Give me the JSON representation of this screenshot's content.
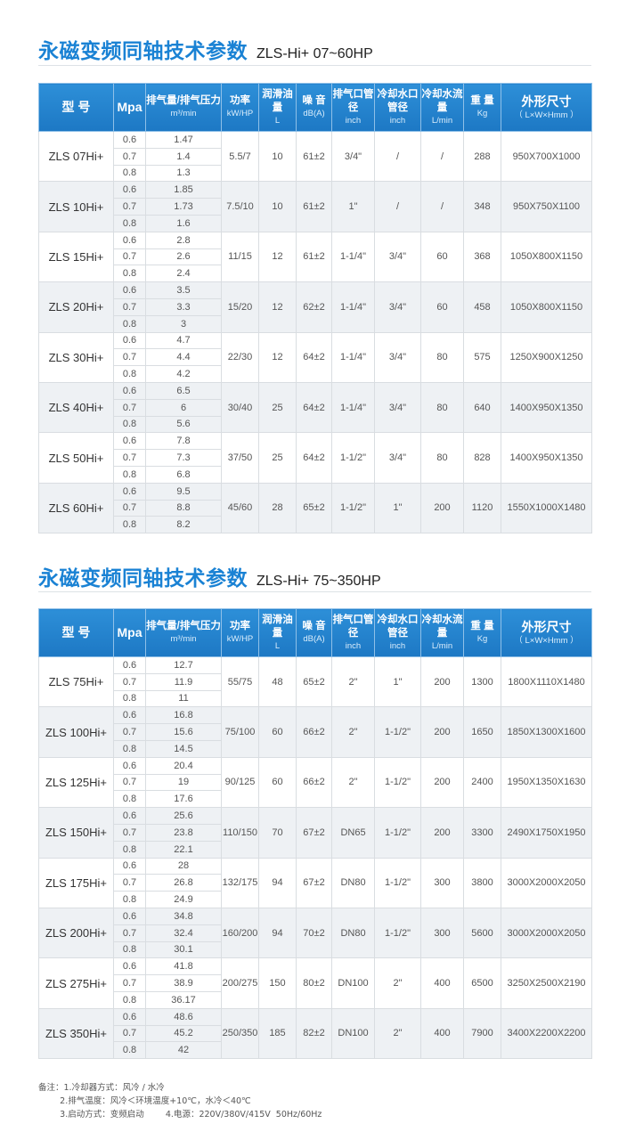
{
  "headers": [
    {
      "main": "型 号",
      "sub": ""
    },
    {
      "main": "Mpa",
      "sub": ""
    },
    {
      "main": "排气量/排气压力",
      "sub": "m³/min"
    },
    {
      "main": "功率",
      "sub": "kW/HP"
    },
    {
      "main": "润滑油量",
      "sub": "L"
    },
    {
      "main": "噪 音",
      "sub": "dB(A)"
    },
    {
      "main": "排气口管径",
      "sub": "inch"
    },
    {
      "main": "冷却水口管径",
      "sub": "inch"
    },
    {
      "main": "冷却水流量",
      "sub": "L/min"
    },
    {
      "main": "重 量",
      "sub": "Kg"
    },
    {
      "main": "外形尺寸",
      "sub": "（ L×W×Hmm ）"
    }
  ],
  "tables": [
    {
      "title_cn": "永磁变频同轴技术参数",
      "title_en": "ZLS-Hi+ 07~60HP",
      "rows": [
        {
          "model": "ZLS 07Hi+",
          "mpa": [
            "0.6",
            "0.7",
            "0.8"
          ],
          "flow": [
            "1.47",
            "1.4",
            "1.3"
          ],
          "power": "5.5/7",
          "oil": "10",
          "noise": "61±2",
          "outlet": "3/4\"",
          "water_pipe": "/",
          "water_flow": "/",
          "weight": "288",
          "dims": "950X700X1000"
        },
        {
          "model": "ZLS 10Hi+",
          "mpa": [
            "0.6",
            "0.7",
            "0.8"
          ],
          "flow": [
            "1.85",
            "1.73",
            "1.6"
          ],
          "power": "7.5/10",
          "oil": "10",
          "noise": "61±2",
          "outlet": "1\"",
          "water_pipe": "/",
          "water_flow": "/",
          "weight": "348",
          "dims": "950X750X1100"
        },
        {
          "model": "ZLS 15Hi+",
          "mpa": [
            "0.6",
            "0.7",
            "0.8"
          ],
          "flow": [
            "2.8",
            "2.6",
            "2.4"
          ],
          "power": "11/15",
          "oil": "12",
          "noise": "61±2",
          "outlet": "1-1/4\"",
          "water_pipe": "3/4\"",
          "water_flow": "60",
          "weight": "368",
          "dims": "1050X800X1150"
        },
        {
          "model": "ZLS 20Hi+",
          "mpa": [
            "0.6",
            "0.7",
            "0.8"
          ],
          "flow": [
            "3.5",
            "3.3",
            "3"
          ],
          "power": "15/20",
          "oil": "12",
          "noise": "62±2",
          "outlet": "1-1/4\"",
          "water_pipe": "3/4\"",
          "water_flow": "60",
          "weight": "458",
          "dims": "1050X800X1150"
        },
        {
          "model": "ZLS 30Hi+",
          "mpa": [
            "0.6",
            "0.7",
            "0.8"
          ],
          "flow": [
            "4.7",
            "4.4",
            "4.2"
          ],
          "power": "22/30",
          "oil": "12",
          "noise": "64±2",
          "outlet": "1-1/4\"",
          "water_pipe": "3/4\"",
          "water_flow": "80",
          "weight": "575",
          "dims": "1250X900X1250"
        },
        {
          "model": "ZLS 40Hi+",
          "mpa": [
            "0.6",
            "0.7",
            "0.8"
          ],
          "flow": [
            "6.5",
            "6",
            "5.6"
          ],
          "power": "30/40",
          "oil": "25",
          "noise": "64±2",
          "outlet": "1-1/4\"",
          "water_pipe": "3/4\"",
          "water_flow": "80",
          "weight": "640",
          "dims": "1400X950X1350"
        },
        {
          "model": "ZLS 50Hi+",
          "mpa": [
            "0.6",
            "0.7",
            "0.8"
          ],
          "flow": [
            "7.8",
            "7.3",
            "6.8"
          ],
          "power": "37/50",
          "oil": "25",
          "noise": "64±2",
          "outlet": "1-1/2\"",
          "water_pipe": "3/4\"",
          "water_flow": "80",
          "weight": "828",
          "dims": "1400X950X1350"
        },
        {
          "model": "ZLS 60Hi+",
          "mpa": [
            "0.6",
            "0.7",
            "0.8"
          ],
          "flow": [
            "9.5",
            "8.8",
            "8.2"
          ],
          "power": "45/60",
          "oil": "28",
          "noise": "65±2",
          "outlet": "1-1/2\"",
          "water_pipe": "1\"",
          "water_flow": "200",
          "weight": "1120",
          "dims": "1550X1000X1480"
        }
      ]
    },
    {
      "title_cn": "永磁变频同轴技术参数",
      "title_en": "ZLS-Hi+ 75~350HP",
      "rows": [
        {
          "model": "ZLS 75Hi+",
          "mpa": [
            "0.6",
            "0.7",
            "0.8"
          ],
          "flow": [
            "12.7",
            "11.9",
            "11"
          ],
          "power": "55/75",
          "oil": "48",
          "noise": "65±2",
          "outlet": "2\"",
          "water_pipe": "1\"",
          "water_flow": "200",
          "weight": "1300",
          "dims": "1800X1110X1480"
        },
        {
          "model": "ZLS 100Hi+",
          "mpa": [
            "0.6",
            "0.7",
            "0.8"
          ],
          "flow": [
            "16.8",
            "15.6",
            "14.5"
          ],
          "power": "75/100",
          "oil": "60",
          "noise": "66±2",
          "outlet": "2\"",
          "water_pipe": "1-1/2\"",
          "water_flow": "200",
          "weight": "1650",
          "dims": "1850X1300X1600"
        },
        {
          "model": "ZLS 125Hi+",
          "mpa": [
            "0.6",
            "0.7",
            "0.8"
          ],
          "flow": [
            "20.4",
            "19",
            "17.6"
          ],
          "power": "90/125",
          "oil": "60",
          "noise": "66±2",
          "outlet": "2\"",
          "water_pipe": "1-1/2\"",
          "water_flow": "200",
          "weight": "2400",
          "dims": "1950X1350X1630"
        },
        {
          "model": "ZLS 150Hi+",
          "mpa": [
            "0.6",
            "0.7",
            "0.8"
          ],
          "flow": [
            "25.6",
            "23.8",
            "22.1"
          ],
          "power": "110/150",
          "oil": "70",
          "noise": "67±2",
          "outlet": "DN65",
          "water_pipe": "1-1/2\"",
          "water_flow": "200",
          "weight": "3300",
          "dims": "2490X1750X1950"
        },
        {
          "model": "ZLS 175Hi+",
          "mpa": [
            "0.6",
            "0.7",
            "0.8"
          ],
          "flow": [
            "28",
            "26.8",
            "24.9"
          ],
          "power": "132/175",
          "oil": "94",
          "noise": "67±2",
          "outlet": "DN80",
          "water_pipe": "1-1/2\"",
          "water_flow": "300",
          "weight": "3800",
          "dims": "3000X2000X2050"
        },
        {
          "model": "ZLS 200Hi+",
          "mpa": [
            "0.6",
            "0.7",
            "0.8"
          ],
          "flow": [
            "34.8",
            "32.4",
            "30.1"
          ],
          "power": "160/200",
          "oil": "94",
          "noise": "70±2",
          "outlet": "DN80",
          "water_pipe": "1-1/2\"",
          "water_flow": "300",
          "weight": "5600",
          "dims": "3000X2000X2050"
        },
        {
          "model": "ZLS 275Hi+",
          "mpa": [
            "0.6",
            "0.7",
            "0.8"
          ],
          "flow": [
            "41.8",
            "38.9",
            "36.17"
          ],
          "power": "200/275",
          "oil": "150",
          "noise": "80±2",
          "outlet": "DN100",
          "water_pipe": "2\"",
          "water_flow": "400",
          "weight": "6500",
          "dims": "3250X2500X2190"
        },
        {
          "model": "ZLS 350Hi+",
          "mpa": [
            "0.6",
            "0.7",
            "0.8"
          ],
          "flow": [
            "48.6",
            "45.2",
            "42"
          ],
          "power": "250/350",
          "oil": "185",
          "noise": "82±2",
          "outlet": "DN100",
          "water_pipe": "2\"",
          "water_flow": "400",
          "weight": "7900",
          "dims": "3400X2200X2200"
        }
      ]
    }
  ],
  "notes": [
    "备注：1.冷却器方式：风冷 / 水冷",
    "        2.排气温度：风冷＜环境温度+10℃，水冷＜40℃",
    "        3.启动方式：变频启动        4.电源：220V/380V/415V  50Hz/60Hz"
  ],
  "colors": {
    "title": "#1a82d4",
    "header": "#1d78c4",
    "alt_row": "#eef1f4"
  }
}
